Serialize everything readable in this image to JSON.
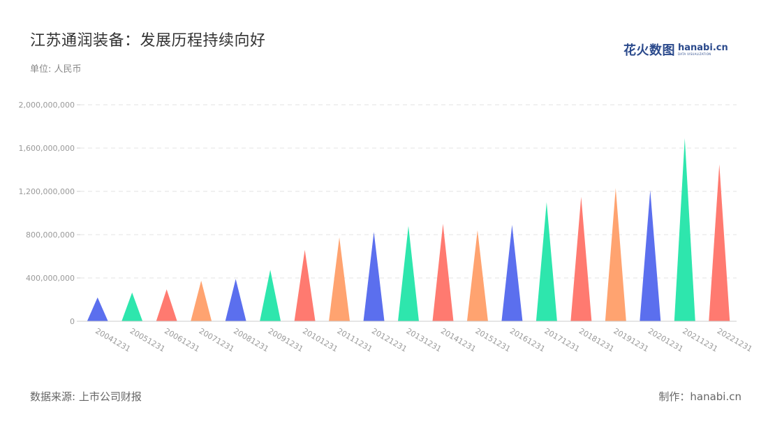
{
  "header": {
    "title": "江苏通润装备：发展历程持续向好",
    "unit": "单位: 人民币"
  },
  "logo": {
    "cn": "花火数图",
    "en": "hanabi.cn",
    "en_sub": "DATA VISUALIZATION"
  },
  "footer": {
    "source": "数据来源: 上市公司财报",
    "maker": "制作：hanabi.cn"
  },
  "colors": {
    "palette": [
      "#5b6fee",
      "#2ee6ad",
      "#ff7a70",
      "#ffa370"
    ],
    "grid": "#e3e3e3",
    "axis": "#cccccc"
  },
  "chart_data": {
    "type": "bar",
    "mark": "triangle",
    "categories": [
      "20041231",
      "20051231",
      "20061231",
      "20071231",
      "20081231",
      "20091231",
      "20101231",
      "20111231",
      "20121231",
      "20131231",
      "20141231",
      "20151231",
      "20161231",
      "20171231",
      "20181231",
      "20191231",
      "20201231",
      "20211231",
      "20221231"
    ],
    "values": [
      220000000,
      265000000,
      295000000,
      375000000,
      390000000,
      475000000,
      660000000,
      775000000,
      825000000,
      880000000,
      900000000,
      840000000,
      890000000,
      1100000000,
      1150000000,
      1230000000,
      1210000000,
      1690000000,
      1450000000
    ],
    "color_cycle": [
      "#5b6fee",
      "#2ee6ad",
      "#ff7a70",
      "#ffa370",
      "#5b6fee",
      "#2ee6ad",
      "#ff7a70",
      "#ffa370",
      "#5b6fee",
      "#2ee6ad",
      "#ff7a70",
      "#ffa370",
      "#5b6fee",
      "#2ee6ad",
      "#ff7a70",
      "#ffa370",
      "#5b6fee",
      "#2ee6ad",
      "#ff7a70"
    ],
    "yticks": [
      "0",
      "400,000,000",
      "800,000,000",
      "1,200,000,000",
      "1,600,000,000",
      "2,000,000,000"
    ],
    "ylim": [
      0,
      2000000000
    ],
    "grid": true,
    "legend": false
  }
}
